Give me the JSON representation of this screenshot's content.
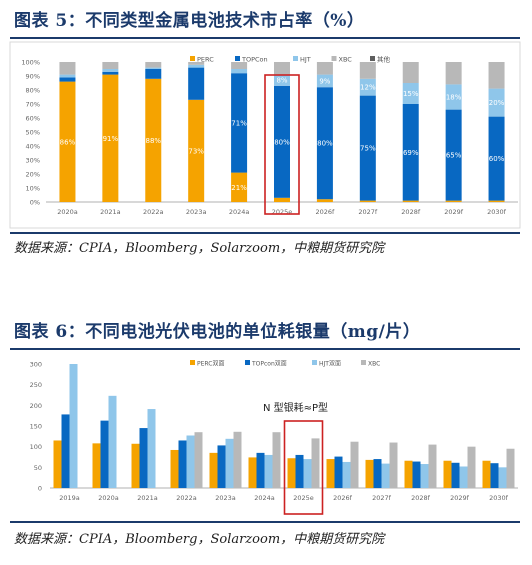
{
  "figure1": {
    "title": "图表 5：不同类型金属电池技术市占率（%）",
    "source": "数据来源：CPIA，Bloomberg，Solarzoom，中粮期货研究院"
  },
  "figure2": {
    "title": "图表 6：不同电池光伏电池的单位耗银量（mg/片）",
    "source": "数据来源：CPIA，Bloomberg，Solarzoom，中粮期货研究院"
  },
  "colors": {
    "navy": "#1b3a6b",
    "highlight": "#cc2222"
  },
  "chart_data": [
    {
      "type": "bar",
      "stacked": true,
      "title": "",
      "xlabel": "",
      "ylabel": "",
      "ylim": [
        0,
        100
      ],
      "yticks": [
        "0%",
        "10%",
        "20%",
        "30%",
        "40%",
        "50%",
        "60%",
        "70%",
        "80%",
        "90%",
        "100%"
      ],
      "legend_position": "top",
      "highlight_category": "2025e",
      "categories": [
        "2020a",
        "2021a",
        "2022a",
        "2023a",
        "2024a",
        "2025e",
        "2026f",
        "2027f",
        "2028f",
        "2029f",
        "2030f"
      ],
      "series": [
        {
          "name": "PERC",
          "color": "#f5a300",
          "values": [
            86,
            91,
            88,
            73,
            21,
            3,
            2,
            1,
            1,
            1,
            1
          ],
          "labels": [
            "86%",
            "91%",
            "88%",
            "73%",
            "21%",
            "",
            "",
            "",
            "",
            "",
            ""
          ]
        },
        {
          "name": "TOPCon",
          "color": "#0868c2",
          "values": [
            3,
            2,
            7,
            23,
            71,
            80,
            80,
            75,
            69,
            65,
            60
          ],
          "labels": [
            "",
            "",
            "",
            "",
            "71%",
            "80%",
            "80%",
            "75%",
            "69%",
            "65%",
            "60%"
          ]
        },
        {
          "name": "HJT",
          "color": "#8fc6ea",
          "values": [
            2,
            2,
            1,
            2,
            3,
            8,
            9,
            12,
            15,
            18,
            20
          ],
          "labels": [
            "",
            "",
            "",
            "",
            "",
            "8%",
            "9%",
            "12%",
            "15%",
            "18%",
            "20%"
          ]
        },
        {
          "name": "XBC",
          "color": "#b8b8b8",
          "values": [
            9,
            5,
            4,
            2,
            5,
            9,
            9,
            12,
            15,
            16,
            19
          ],
          "labels": [
            "",
            "",
            "",
            "",
            "",
            "",
            "",
            "",
            "",
            "",
            ""
          ]
        },
        {
          "name": "其他",
          "color": "#5e5e5e",
          "values": [
            0,
            0,
            0,
            0,
            0,
            0,
            0,
            0,
            0,
            0,
            0
          ],
          "labels": [
            "",
            "",
            "",
            "",
            "",
            "",
            "",
            "",
            "",
            "",
            ""
          ]
        }
      ]
    },
    {
      "type": "bar",
      "stacked": false,
      "title": "",
      "xlabel": "",
      "ylabel": "",
      "ylim": [
        0,
        300
      ],
      "yticks": [
        "0",
        "50",
        "100",
        "150",
        "200",
        "250",
        "300"
      ],
      "legend_position": "top-right",
      "highlight_category": "2025e",
      "annotation": "N 型银耗≈P型",
      "categories": [
        "2019a",
        "2020a",
        "2021a",
        "2022a",
        "2023a",
        "2024a",
        "2025e",
        "2026f",
        "2027f",
        "2028f",
        "2029f",
        "2030f"
      ],
      "series": [
        {
          "name": "PERC双面",
          "color": "#f5a300",
          "values": [
            115,
            108,
            107,
            92,
            85,
            74,
            72,
            70,
            68,
            66,
            66,
            66
          ]
        },
        {
          "name": "TOPcon双面",
          "color": "#0868c2",
          "values": [
            178,
            163,
            145,
            115,
            103,
            85,
            80,
            76,
            70,
            64,
            61,
            60
          ]
        },
        {
          "name": "HJT双面",
          "color": "#8fc6ea",
          "values": [
            300,
            223,
            191,
            127,
            119,
            80,
            70,
            63,
            59,
            58,
            52,
            50
          ]
        },
        {
          "name": "XBC",
          "color": "#b8b8b8",
          "values": [
            null,
            null,
            null,
            135,
            136,
            135,
            120,
            112,
            110,
            105,
            100,
            95
          ]
        }
      ]
    }
  ]
}
